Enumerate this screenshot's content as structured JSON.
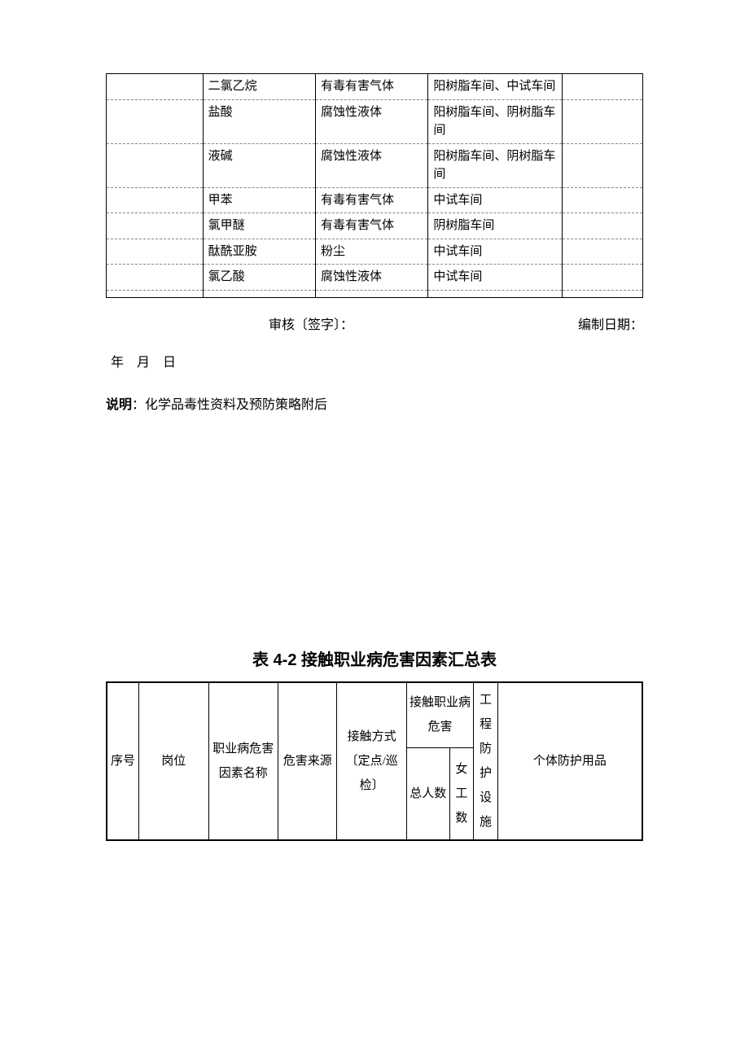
{
  "table1": {
    "rows": [
      {
        "c2": "二氯乙烷",
        "c3": "有毒有害气体",
        "c4": "阳树脂车间、中试车间"
      },
      {
        "c2": "盐酸",
        "c3": "腐蚀性液体",
        "c4": "阳树脂车间、阴树脂车间"
      },
      {
        "c2": "液碱",
        "c3": "腐蚀性液体",
        "c4": "阳树脂车间、阴树脂车间"
      },
      {
        "c2": "甲苯",
        "c3": "有毒有害气体",
        "c4": "中试车间"
      },
      {
        "c2": "氯甲醚",
        "c3": "有毒有害气体",
        "c4": "阴树脂车间"
      },
      {
        "c2": "酞酰亚胺",
        "c3": "粉尘",
        "c4": "中试车间"
      },
      {
        "c2": "氯乙酸",
        "c3": "腐蚀性液体",
        "c4": "中试车间"
      },
      {
        "c2": "",
        "c3": "",
        "c4": ""
      }
    ]
  },
  "signLine": {
    "audit": "审核〔签字〕：",
    "date": "编制日期："
  },
  "dateBlank": "年　月　日",
  "note": {
    "label": "说明",
    "sep": "：",
    "text": "化学品毒性资料及预防策略附后"
  },
  "title2": "表 4-2 接触职业病危害因素汇总表",
  "table2": {
    "headers": {
      "seq": "序号",
      "post": "岗位",
      "factor": "职业病危害因素名称",
      "source": "危害来源",
      "contact": "接触方式〔定点/巡检〕",
      "hazardGroup": "接触职业病危害",
      "total": "总人数",
      "female": "女工数",
      "facility": "工程防护设施",
      "ppe": "个体防护用品"
    },
    "colWidths": {
      "seq": "6%",
      "post": "13%",
      "factor": "13%",
      "source": "11%",
      "contact": "13%",
      "total": "8%",
      "female": "4.5%",
      "facility": "4.5%",
      "ppe": "27%"
    }
  }
}
